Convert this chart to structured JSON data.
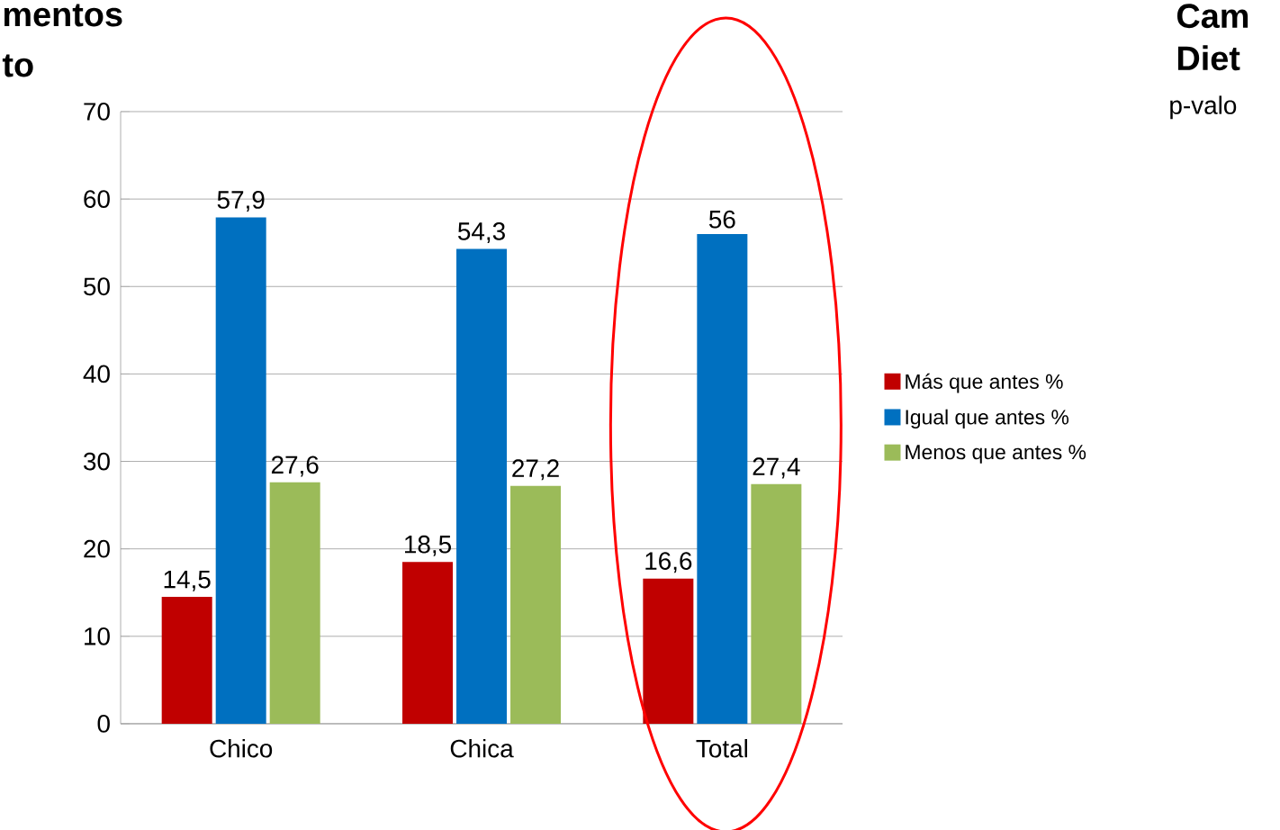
{
  "chart_data": {
    "type": "bar",
    "categories": [
      "Chico",
      "Chica",
      "Total"
    ],
    "series": [
      {
        "name": "Más que antes %",
        "color": "#c00000",
        "values": [
          14.5,
          18.5,
          16.6
        ],
        "value_labels": [
          "14,5",
          "18,5",
          "16,6"
        ]
      },
      {
        "name": "Igual que antes %",
        "color": "#0070c0",
        "values": [
          57.9,
          54.3,
          56
        ],
        "value_labels": [
          "57,9",
          "54,3",
          "56"
        ]
      },
      {
        "name": "Menos que antes %",
        "color": "#9bbb59",
        "values": [
          27.6,
          27.2,
          27.4
        ],
        "value_labels": [
          "27,6",
          "27,2",
          "27,4"
        ]
      }
    ],
    "ylim": [
      0,
      70
    ],
    "yticks": [
      0,
      10,
      20,
      30,
      40,
      50,
      60,
      70
    ],
    "grid": "y",
    "legend": "right",
    "annotations": [
      "mentos",
      "to",
      "Cam",
      "Diet",
      "p-valo"
    ]
  }
}
